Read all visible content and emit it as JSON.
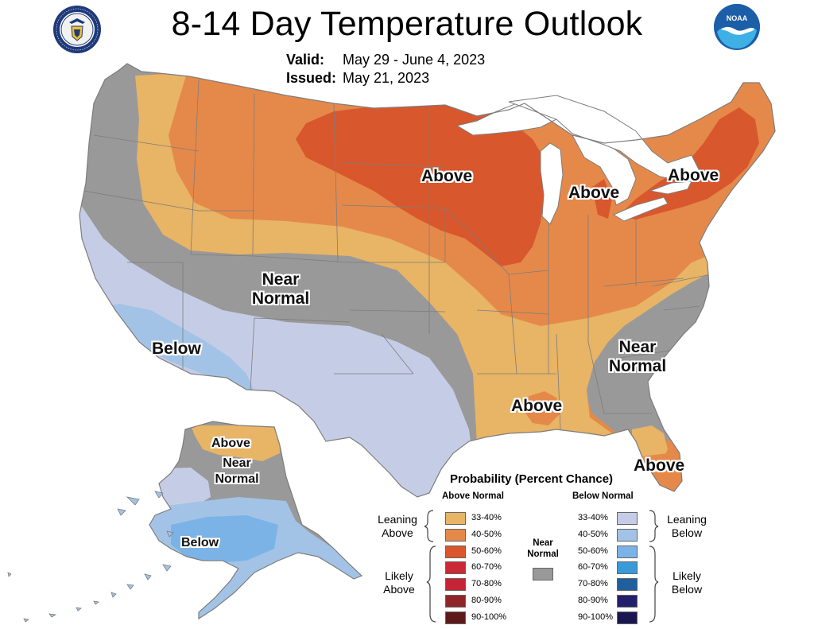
{
  "title": "8-14 Day Temperature Outlook",
  "valid": {
    "label": "Valid:",
    "value": "May 29 - June 4, 2023"
  },
  "issued": {
    "label": "Issued:",
    "value": "May 21, 2023"
  },
  "logos": {
    "left": "doc-seal",
    "right": "noaa-logo",
    "noaa_text": "NOAA"
  },
  "colors": {
    "above_33_40": "#e8b465",
    "above_40_50": "#e5894a",
    "above_50_60": "#d9572d",
    "above_60_70": "#c92a35",
    "above_70_80": "#c52336",
    "above_80_90": "#8e2528",
    "above_90_100": "#5c1a1a",
    "near_normal": "#999999",
    "below_33_40": "#c5cde6",
    "below_40_50": "#a3c3e6",
    "below_50_60": "#7cb3e6",
    "below_60_70": "#3a99d8",
    "below_70_80": "#1f5f9e",
    "below_80_90": "#221f6b",
    "below_90_100": "#1a1650",
    "land_outline": "#7d7d7d",
    "water": "#ffffff"
  },
  "regions": {
    "above_north_central": "Above",
    "above_michigan": "Above",
    "above_northeast": "Above",
    "near_normal_west_1": "Near",
    "near_normal_west_2": "Normal",
    "below_west": "Below",
    "near_normal_east_1": "Near",
    "near_normal_east_2": "Normal",
    "above_gulf": "Above",
    "above_florida": "Above",
    "alaska_above": "Above",
    "alaska_near_1": "Near",
    "alaska_near_2": "Normal",
    "alaska_below": "Below"
  },
  "legend": {
    "title": "Probability (Percent Chance)",
    "above_header": "Above Normal",
    "below_header": "Below Normal",
    "near_normal_1": "Near",
    "near_normal_2": "Normal",
    "leaning_above_1": "Leaning",
    "leaning_above_2": "Above",
    "likely_above_1": "Likely",
    "likely_above_2": "Above",
    "leaning_below_1": "Leaning",
    "leaning_below_2": "Below",
    "likely_below_1": "Likely",
    "likely_below_2": "Below",
    "ranges": [
      "33-40%",
      "40-50%",
      "50-60%",
      "60-70%",
      "70-80%",
      "80-90%",
      "90-100%"
    ]
  }
}
